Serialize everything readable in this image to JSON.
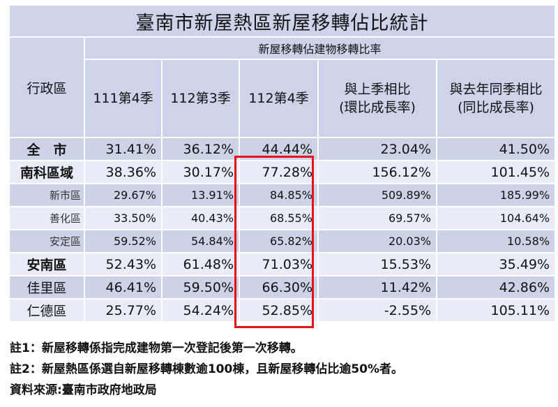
{
  "title": "臺南市新屋熱區新屋移轉佔比統計",
  "header": {
    "district_label": "行政區",
    "group_label": "新屋移轉佔建物移轉比率",
    "columns": [
      "111第4季",
      "112第3季",
      "112第4季",
      "與上季相比\n(環比成長率)",
      "與去年同季相比\n(同比成長率)"
    ]
  },
  "rows": [
    {
      "name": "全　市",
      "values": [
        "31.41%",
        "36.12%",
        "44.44%",
        "23.04%",
        "41.50%"
      ]
    },
    {
      "name": "南科區域",
      "values": [
        "38.36%",
        "30.17%",
        "77.28%",
        "156.12%",
        "101.45%"
      ]
    },
    {
      "name": "新市區",
      "values": [
        "29.67%",
        "13.91%",
        "84.85%",
        "509.89%",
        "185.99%"
      ]
    },
    {
      "name": "善化區",
      "values": [
        "33.50%",
        "40.43%",
        "68.55%",
        "69.57%",
        "104.64%"
      ]
    },
    {
      "name": "安定區",
      "values": [
        "59.52%",
        "54.84%",
        "65.82%",
        "20.03%",
        "10.58%"
      ]
    },
    {
      "name": "安南區",
      "values": [
        "52.43%",
        "61.48%",
        "71.03%",
        "15.53%",
        "35.49%"
      ]
    },
    {
      "name": "佳里區",
      "values": [
        "46.41%",
        "59.50%",
        "66.30%",
        "11.42%",
        "42.86%"
      ]
    },
    {
      "name": "仁德區",
      "values": [
        "25.77%",
        "54.24%",
        "52.85%",
        "-2.55%",
        "105.11%"
      ]
    }
  ],
  "notes": [
    "註1：新屋移轉係指完成建物第一次登記後第一次移轉。",
    "註2：新屋熱區係選自新屋移轉棟數逾100棟，且新屋移轉佔比逾50%者。",
    "資料來源:臺南市政府地政局"
  ],
  "colors": {
    "header_bg": "#cdd4ea",
    "row_dark": "#cdd3e6",
    "row_light": "#e9ecf6",
    "highlight": "#e3121b"
  }
}
